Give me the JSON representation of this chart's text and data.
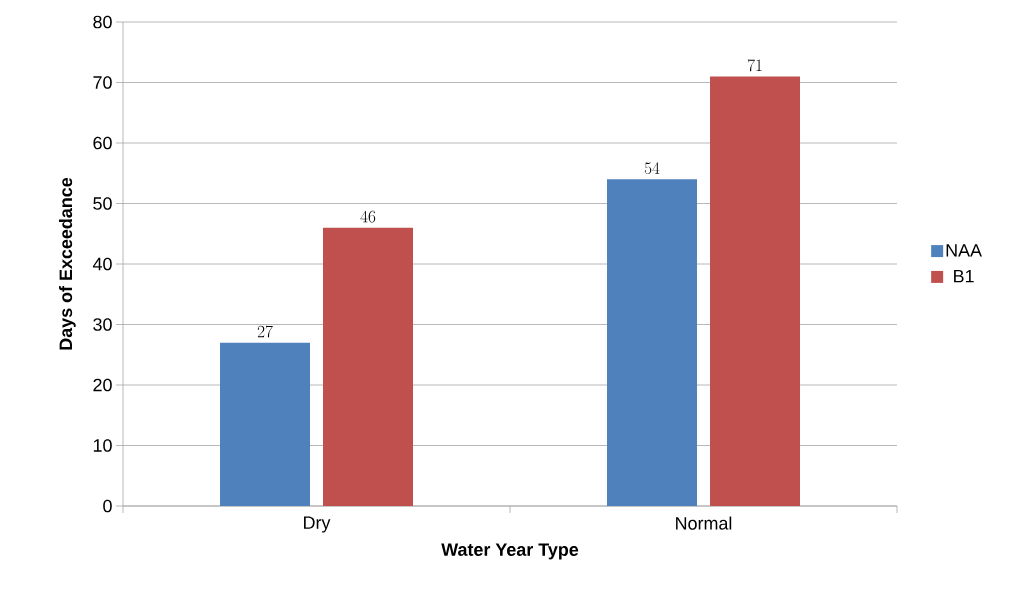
{
  "chart_data": {
    "type": "bar",
    "xlabel": "Water Year Type",
    "ylabel": "Days of Exceedance",
    "categories": [
      "Dry",
      "Normal"
    ],
    "series": [
      {
        "name": "NAA",
        "color": "#4f81bd",
        "values": [
          27,
          54
        ]
      },
      {
        "name": "B1",
        "color": "#c0504d",
        "values": [
          46,
          71
        ]
      }
    ],
    "ylim": [
      0,
      80
    ],
    "yticks": [
      0,
      10,
      20,
      30,
      40,
      50,
      60,
      70,
      80
    ],
    "grid": "y",
    "legend": "right",
    "data_labels": true
  }
}
